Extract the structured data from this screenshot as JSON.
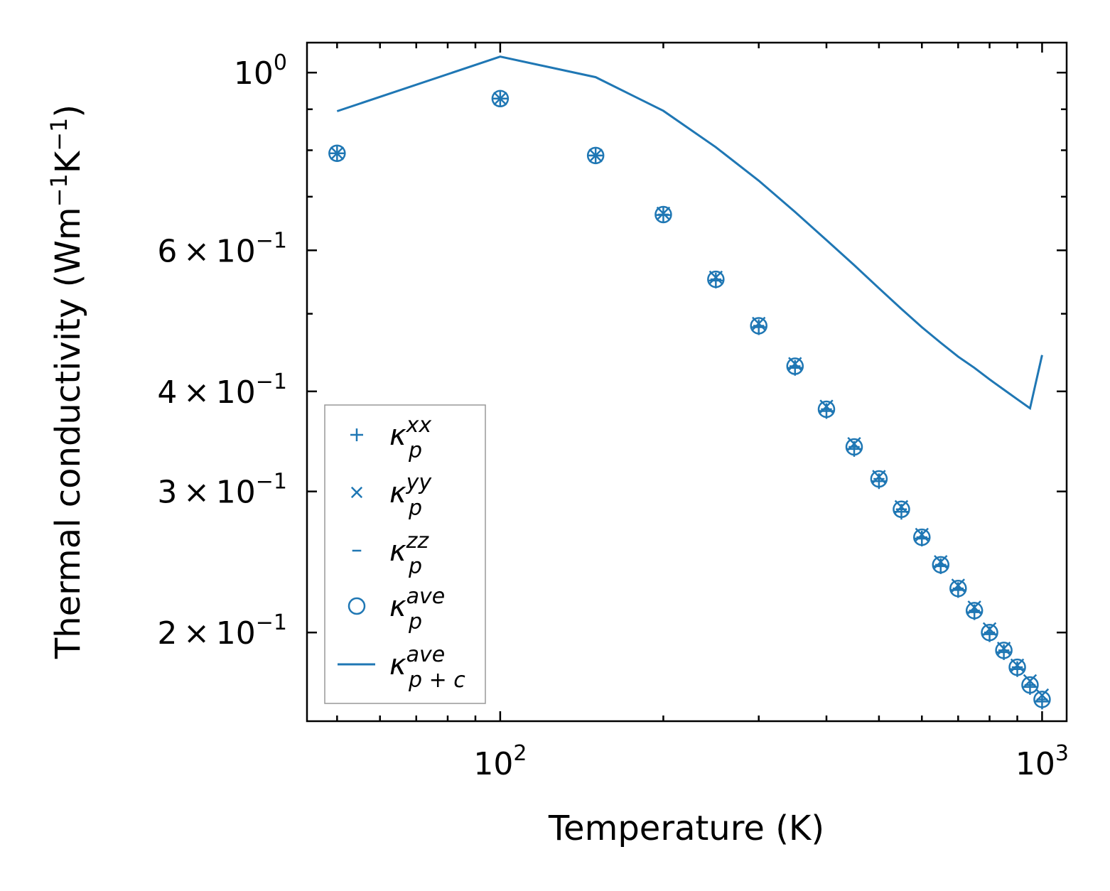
{
  "chart_data": {
    "type": "scatter",
    "xlabel": "Temperature (K)",
    "ylabel_main": "Thermal conductivity (Wm",
    "ylabel_sup1": "−1",
    "ylabel_mid": "K",
    "ylabel_sup2": "−1",
    "ylabel_end": ")",
    "x_scale": "log",
    "y_scale": "log",
    "xlim": [
      44,
      1110
    ],
    "ylim": [
      0.155,
      1.09
    ],
    "grid": false,
    "legend_position": "lower-left",
    "color": "#1f77b4",
    "x_ticks": [
      {
        "value": 100,
        "base": "10",
        "exp": "2"
      },
      {
        "value": 1000,
        "base": "10",
        "exp": "3"
      }
    ],
    "y_ticks": [
      {
        "value": 1.0,
        "mant": "",
        "base": "10",
        "exp": "0"
      },
      {
        "value": 0.6,
        "mant": "6",
        "base": "10",
        "exp": "−1"
      },
      {
        "value": 0.4,
        "mant": "4",
        "base": "10",
        "exp": "−1"
      },
      {
        "value": 0.3,
        "mant": "3",
        "base": "10",
        "exp": "−1"
      },
      {
        "value": 0.2,
        "mant": "2",
        "base": "10",
        "exp": "−1"
      }
    ],
    "x": [
      50,
      100,
      150,
      200,
      250,
      300,
      350,
      400,
      450,
      500,
      550,
      600,
      650,
      700,
      750,
      800,
      850,
      900,
      950,
      1000
    ],
    "series": [
      {
        "marker": "plus",
        "legend_base": "κ",
        "legend_sub": "p",
        "legend_sup": "xx",
        "values": [
          0.793,
          0.928,
          0.788,
          0.664,
          0.55,
          0.481,
          0.428,
          0.378,
          0.339,
          0.309,
          0.283,
          0.262,
          0.242,
          0.226,
          0.212,
          0.199,
          0.189,
          0.18,
          0.171,
          0.164
        ]
      },
      {
        "marker": "x",
        "legend_base": "κ",
        "legend_sub": "p",
        "legend_sup": "yy",
        "values": [
          0.793,
          0.928,
          0.788,
          0.667,
          0.555,
          0.486,
          0.433,
          0.383,
          0.344,
          0.313,
          0.287,
          0.265,
          0.245,
          0.229,
          0.215,
          0.202,
          0.191,
          0.182,
          0.174,
          0.167
        ]
      },
      {
        "marker": "hline",
        "legend_base": "κ",
        "legend_sub": "p",
        "legend_sup": "zz",
        "values": [
          0.793,
          0.928,
          0.788,
          0.665,
          0.552,
          0.483,
          0.43,
          0.38,
          0.341,
          0.311,
          0.285,
          0.263,
          0.243,
          0.227,
          0.213,
          0.2,
          0.19,
          0.181,
          0.172,
          0.165
        ]
      },
      {
        "marker": "circle",
        "legend_base": "κ",
        "legend_sub": "p",
        "legend_sup": "ave",
        "values": [
          0.793,
          0.928,
          0.788,
          0.665,
          0.552,
          0.483,
          0.43,
          0.38,
          0.341,
          0.311,
          0.285,
          0.263,
          0.243,
          0.227,
          0.213,
          0.2,
          0.19,
          0.181,
          0.172,
          0.165
        ]
      },
      {
        "marker": "line",
        "legend_base": "κ",
        "legend_sub": "p + c",
        "legend_sup": "ave",
        "x": [
          50,
          100,
          150,
          200,
          250,
          300,
          350,
          400,
          450,
          500,
          550,
          600,
          650,
          700,
          750,
          800,
          850,
          900,
          950,
          1000
        ],
        "values": [
          0.895,
          1.047,
          0.987,
          0.896,
          0.807,
          0.733,
          0.67,
          0.618,
          0.575,
          0.538,
          0.507,
          0.481,
          0.46,
          0.442,
          0.428,
          0.414,
          0.402,
          0.391,
          0.381,
          0.444
        ]
      }
    ]
  }
}
